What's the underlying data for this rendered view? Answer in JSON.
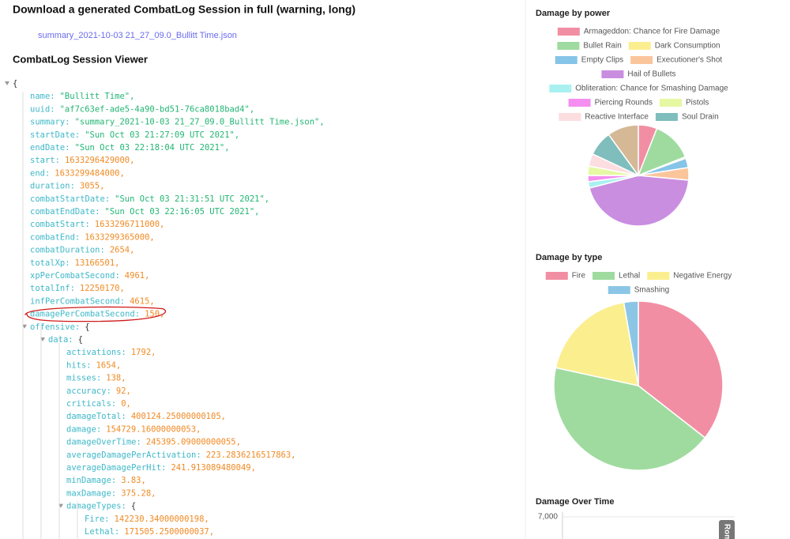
{
  "header": {
    "title": "Download a generated CombatLog Session in full (warning, long)",
    "link": "summary_2021-10-03 21_27_09.0_Bullitt Time.json",
    "viewer_title": "CombatLog Session Viewer"
  },
  "tree": [
    {
      "depth": 0,
      "value": "{",
      "expanded": true
    },
    {
      "depth": 1,
      "key": "name:",
      "value": "\"Bullitt Time\",",
      "kind": "string"
    },
    {
      "depth": 1,
      "key": "uuid:",
      "value": "\"af7c63ef-ade5-4a90-bd51-76ca8018bad4\",",
      "kind": "string"
    },
    {
      "depth": 1,
      "key": "summary:",
      "value": "\"summary_2021-10-03 21_27_09.0_Bullitt Time.json\",",
      "kind": "string"
    },
    {
      "depth": 1,
      "key": "startDate:",
      "value": "\"Sun Oct 03 21:27:09 UTC 2021\",",
      "kind": "string"
    },
    {
      "depth": 1,
      "key": "endDate:",
      "value": "\"Sun Oct 03 22:18:04 UTC 2021\",",
      "kind": "string"
    },
    {
      "depth": 1,
      "key": "start:",
      "value": "1633296429000,",
      "kind": "number"
    },
    {
      "depth": 1,
      "key": "end:",
      "value": "1633299484000,",
      "kind": "number"
    },
    {
      "depth": 1,
      "key": "duration:",
      "value": "3055,",
      "kind": "number"
    },
    {
      "depth": 1,
      "key": "combatStartDate:",
      "value": "\"Sun Oct 03 21:31:51 UTC 2021\",",
      "kind": "string"
    },
    {
      "depth": 1,
      "key": "combatEndDate:",
      "value": "\"Sun Oct 03 22:16:05 UTC 2021\",",
      "kind": "string"
    },
    {
      "depth": 1,
      "key": "combatStart:",
      "value": "1633296711000,",
      "kind": "number"
    },
    {
      "depth": 1,
      "key": "combatEnd:",
      "value": "1633299365000,",
      "kind": "number"
    },
    {
      "depth": 1,
      "key": "combatDuration:",
      "value": "2654,",
      "kind": "number"
    },
    {
      "depth": 1,
      "key": "totalXp:",
      "value": "13166501,",
      "kind": "number"
    },
    {
      "depth": 1,
      "key": "xpPerCombatSecond:",
      "value": "4961,",
      "kind": "number"
    },
    {
      "depth": 1,
      "key": "totalInf:",
      "value": "12250170,",
      "kind": "number"
    },
    {
      "depth": 1,
      "key": "infPerCombatSecond:",
      "value": "4615,",
      "kind": "number"
    },
    {
      "depth": 1,
      "key": "damagePerCombatSecond:",
      "value": "150,",
      "kind": "number",
      "highlighted": true
    },
    {
      "depth": 1,
      "key": "offensive:",
      "value": "{",
      "expanded": true
    },
    {
      "depth": 2,
      "key": "data:",
      "value": "{",
      "expanded": true
    },
    {
      "depth": 3,
      "key": "activations:",
      "value": "1792,",
      "kind": "number"
    },
    {
      "depth": 3,
      "key": "hits:",
      "value": "1654,",
      "kind": "number"
    },
    {
      "depth": 3,
      "key": "misses:",
      "value": "138,",
      "kind": "number"
    },
    {
      "depth": 3,
      "key": "accuracy:",
      "value": "92,",
      "kind": "number"
    },
    {
      "depth": 3,
      "key": "criticals:",
      "value": "0,",
      "kind": "number"
    },
    {
      "depth": 3,
      "key": "damageTotal:",
      "value": "400124.25000000105,",
      "kind": "number"
    },
    {
      "depth": 3,
      "key": "damage:",
      "value": "154729.16000000053,",
      "kind": "number"
    },
    {
      "depth": 3,
      "key": "damageOverTime:",
      "value": "245395.09000000055,",
      "kind": "number"
    },
    {
      "depth": 3,
      "key": "averageDamagePerActivation:",
      "value": "223.2836216517863,",
      "kind": "number"
    },
    {
      "depth": 3,
      "key": "averageDamagePerHit:",
      "value": "241.913089480049,",
      "kind": "number"
    },
    {
      "depth": 3,
      "key": "minDamage:",
      "value": "3.83,",
      "kind": "number"
    },
    {
      "depth": 3,
      "key": "maxDamage:",
      "value": "375.28,",
      "kind": "number"
    },
    {
      "depth": 3,
      "key": "damageTypes:",
      "value": "{",
      "expanded": true
    },
    {
      "depth": 4,
      "key": "Fire:",
      "value": "142230.34000000198,",
      "kind": "number"
    },
    {
      "depth": 4,
      "key": "Lethal:",
      "value": "171505.2500000037,",
      "kind": "number"
    }
  ],
  "charts": [
    {
      "type": "pie",
      "title": "Damage by power",
      "categories": [
        "Armageddon: Chance for Fire Damage",
        "Bullet Rain",
        "Dark Consumption",
        "Empty Clips",
        "Executioner's Shot",
        "Hail of Bullets",
        "Obliteration: Chance for Smashing Damage",
        "Piercing Rounds",
        "Pistols",
        "Reactive Interface",
        "Soul Drain",
        null
      ],
      "values": [
        6,
        13,
        0.5,
        3,
        4,
        44.5,
        2,
        2,
        3,
        4,
        8,
        10
      ],
      "colors": [
        "#f28ea3",
        "#9fdb9f",
        "#fbee8f",
        "#86c4e8",
        "#fbc59c",
        "#c98ee0",
        "#a9f1f1",
        "#f48ef0",
        "#e6f8a2",
        "#fcdde0",
        "#80bdbd",
        "#d5b996"
      ]
    },
    {
      "type": "pie",
      "title": "Damage by type",
      "categories": [
        "Fire",
        "Lethal",
        "Negative Energy",
        "Smashing"
      ],
      "values": [
        142230,
        171505,
        75389,
        11000
      ],
      "colors": [
        "#f28ea3",
        "#9fdb9f",
        "#fbee8f",
        "#8cc6e6"
      ]
    },
    {
      "type": "bar",
      "title": "Damage Over Time",
      "yticks": [
        {
          "value": 7000,
          "label": "7,000"
        }
      ],
      "ylim": [
        0,
        7000
      ],
      "tag": "Rom"
    }
  ]
}
